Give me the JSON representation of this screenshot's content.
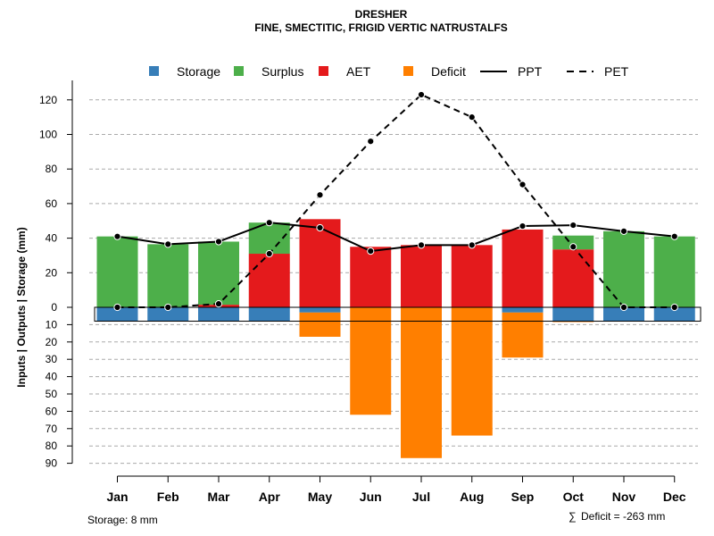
{
  "chart_data": {
    "type": "bar",
    "title": "DRESHER",
    "subtitle": "FINE, SMECTITIC, FRIGID VERTIC NATRUSTALFS",
    "ylabel": "Inputs | Outputs | Storage    (mm)",
    "categories": [
      "Jan",
      "Feb",
      "Mar",
      "Apr",
      "May",
      "Jun",
      "Jul",
      "Aug",
      "Sep",
      "Oct",
      "Nov",
      "Dec"
    ],
    "ylim_top": [
      0,
      130
    ],
    "ylim_bottom": [
      0,
      90
    ],
    "yticks_top": [
      "0",
      "20",
      "40",
      "60",
      "80",
      "100",
      "120"
    ],
    "yticks_bottom": [
      "10",
      "20",
      "30",
      "40",
      "50",
      "60",
      "70",
      "80",
      "90"
    ],
    "series": [
      {
        "name": "Storage",
        "color": "#377EB8",
        "position": "below",
        "values": [
          8,
          8,
          8,
          8,
          3,
          0,
          0,
          0,
          3,
          8,
          8,
          8
        ]
      },
      {
        "name": "Surplus",
        "color": "#4DAF4A",
        "position": "above",
        "values": [
          41,
          36.5,
          36.5,
          18,
          0,
          0,
          0,
          0,
          0,
          8,
          44,
          41
        ]
      },
      {
        "name": "AET",
        "color": "#E41A1C",
        "position": "above",
        "values": [
          0,
          0,
          1.5,
          31,
          51,
          35,
          36,
          36,
          45,
          33.5,
          0,
          0
        ]
      },
      {
        "name": "Deficit",
        "color": "#FF7F00",
        "position": "below",
        "values": [
          0,
          0,
          0,
          0,
          14,
          62,
          87,
          74,
          26,
          0.5,
          0,
          0
        ]
      },
      {
        "name": "PPT",
        "color": "#000000",
        "style": "solid",
        "values": [
          41,
          36.5,
          38,
          49,
          46,
          32.5,
          36,
          36,
          47,
          47.5,
          44,
          41
        ]
      },
      {
        "name": "PET",
        "color": "#000000",
        "style": "dashed",
        "values": [
          0,
          0,
          2,
          31,
          65,
          96,
          123,
          110,
          71,
          35,
          0,
          0
        ]
      }
    ],
    "legend_position": "top",
    "grid": true
  },
  "footer": {
    "storage_text": "Storage: 8 mm",
    "deficit_text": "Deficit = -263 mm",
    "sum_symbol": "∑"
  }
}
